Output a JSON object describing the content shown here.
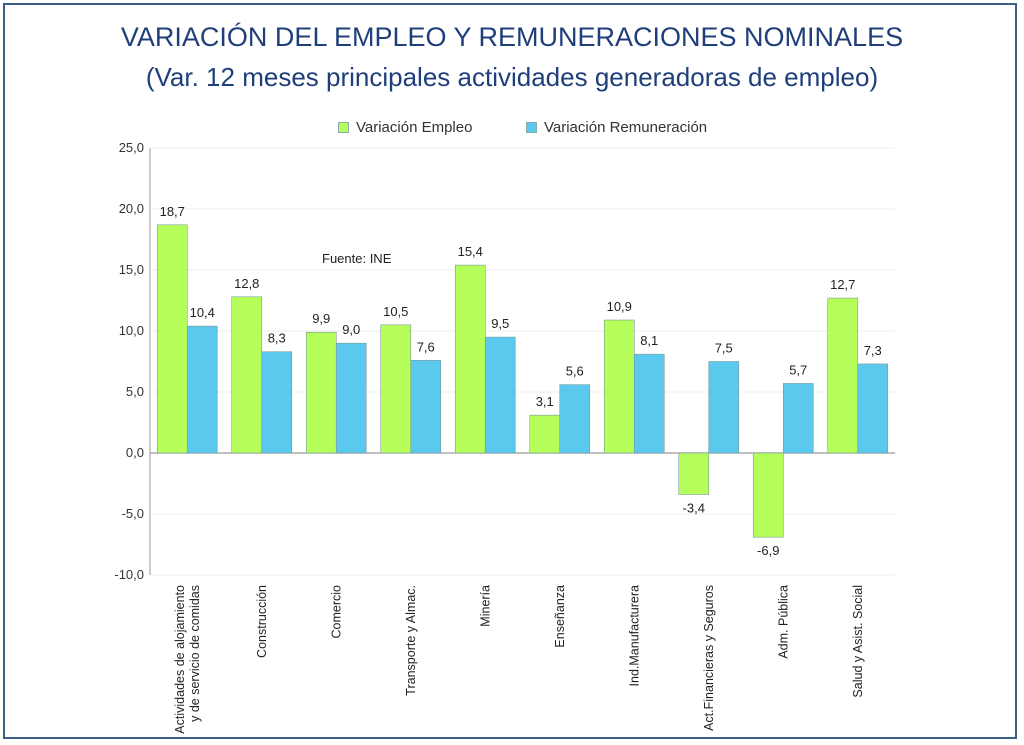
{
  "chart_data": {
    "type": "bar",
    "title": "VARIACIÓN DEL EMPLEO Y REMUNERACIONES NOMINALES",
    "subtitle": "(Var. 12 meses principales actividades generadoras de empleo)",
    "source": "Fuente: INE",
    "categories": [
      [
        "Actividades de alojamiento",
        "y de servicio de comidas"
      ],
      [
        "Construcción"
      ],
      [
        "Comercio"
      ],
      [
        "Transporte y Almac."
      ],
      [
        "Minería"
      ],
      [
        "Enseñanza"
      ],
      [
        "Ind.Manufacturera"
      ],
      [
        "Act.Financieras y Seguros"
      ],
      [
        "Adm. Pública"
      ],
      [
        "Salud y Asist. Social"
      ]
    ],
    "series": [
      {
        "name": "Variación Empleo",
        "color": "#b6ff5a",
        "values": [
          18.7,
          12.8,
          9.9,
          10.5,
          15.4,
          3.1,
          10.9,
          -3.4,
          -6.9,
          12.7
        ],
        "labels": [
          "18,7",
          "12,8",
          "9,9",
          "10,5",
          "15,4",
          "3,1",
          "10,9",
          "-3,4",
          "-6,9",
          "12,7"
        ]
      },
      {
        "name": "Variación Remuneración",
        "color": "#5bc8ee",
        "values": [
          10.4,
          8.3,
          9.0,
          7.6,
          9.5,
          5.6,
          8.1,
          7.5,
          5.7,
          7.3
        ],
        "labels": [
          "10,4",
          "8,3",
          "9,0",
          "7,6",
          "9,5",
          "5,6",
          "8,1",
          "7,5",
          "5,7",
          "7,3"
        ]
      }
    ],
    "ylim": [
      -10,
      25
    ],
    "yticks": [
      25,
      20,
      15,
      10,
      5,
      0,
      -5,
      -10
    ],
    "ytick_labels": [
      "25,0",
      "20,0",
      "15,0",
      "10,0",
      "5,0",
      "0,0",
      "-5,0",
      "-10,0"
    ],
    "grid": true,
    "legend_position": "top-center"
  }
}
